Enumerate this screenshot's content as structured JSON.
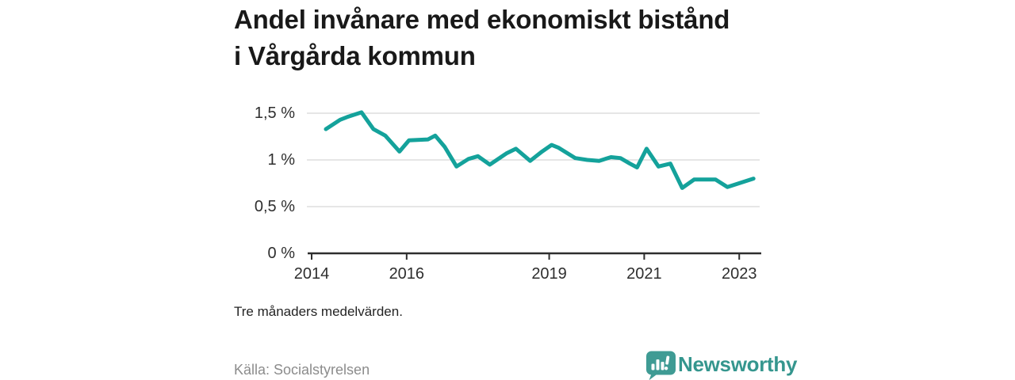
{
  "title": "Andel invånare med ekonomiskt bistånd i Vårgårda kommun",
  "note": "Tre månaders medelvärden.",
  "source": "Källa: Socialstyrelsen",
  "brand": {
    "name": "Newsworthy",
    "text_color": "#35968e",
    "mark_color": "#3f9b94"
  },
  "colors": {
    "line": "#14a29b",
    "grid": "#d6d6d6",
    "axis": "#2e2e2e",
    "title_text": "#191919",
    "muted_text": "#8c8c8c"
  },
  "chart_data": {
    "type": "line",
    "title": "Andel invånare med ekonomiskt bistånd i Vårgårda kommun",
    "subtitle": "Tre månaders medelvärden.",
    "xlabel": "",
    "ylabel": "",
    "unit": "%",
    "grid": true,
    "legend_position": "none",
    "xlim": [
      2013.9,
      2023.43
    ],
    "ylim": [
      0,
      1.602
    ],
    "yticks": [
      {
        "v": 0,
        "label": "0 %"
      },
      {
        "v": 0.5,
        "label": "0,5 %"
      },
      {
        "v": 1,
        "label": "1 %"
      },
      {
        "v": 1.5,
        "label": "1,5 %"
      }
    ],
    "xticks": [
      {
        "v": 2014,
        "label": "2014"
      },
      {
        "v": 2016,
        "label": "2016"
      },
      {
        "v": 2019,
        "label": "2019"
      },
      {
        "v": 2021,
        "label": "2021"
      },
      {
        "v": 2023,
        "label": "2023"
      }
    ],
    "series": [
      {
        "name": "Andel invånare med ekonomiskt bistånd",
        "x": [
          2014.3,
          2014.6,
          2014.75,
          2015.05,
          2015.3,
          2015.55,
          2015.85,
          2016.05,
          2016.45,
          2016.6,
          2016.8,
          2017.05,
          2017.3,
          2017.5,
          2017.75,
          2018.1,
          2018.3,
          2018.6,
          2018.85,
          2019.05,
          2019.2,
          2019.55,
          2019.8,
          2020.05,
          2020.3,
          2020.5,
          2020.7,
          2020.85,
          2021.05,
          2021.3,
          2021.55,
          2021.8,
          2022.05,
          2022.5,
          2022.75,
          2023.3
        ],
        "values": [
          1.33,
          1.43,
          1.46,
          1.51,
          1.33,
          1.26,
          1.09,
          1.21,
          1.22,
          1.26,
          1.14,
          0.93,
          1.01,
          1.04,
          0.95,
          1.07,
          1.12,
          0.99,
          1.09,
          1.16,
          1.13,
          1.02,
          1.0,
          0.99,
          1.03,
          1.02,
          0.96,
          0.92,
          1.12,
          0.93,
          0.96,
          0.7,
          0.79,
          0.79,
          0.71,
          0.8
        ]
      }
    ]
  }
}
